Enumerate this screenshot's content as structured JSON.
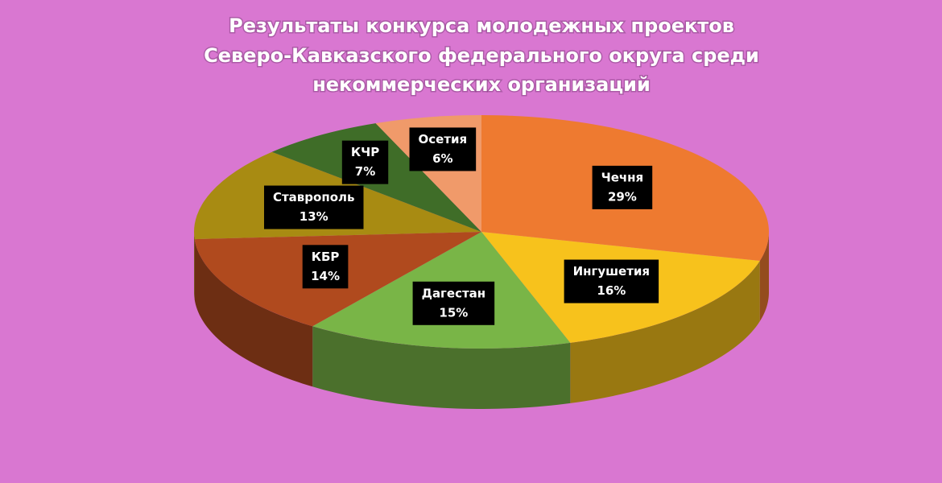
{
  "chart_data": {
    "type": "pie",
    "title": [
      "Результаты конкурса молодежных проектов",
      "Северо-Кавказского федерального округа среди",
      "некоммерческих организаций"
    ],
    "categories": [
      "Чечня",
      "Ингушетия",
      "Дагестан",
      "КБР",
      "Ставрополь",
      "КЧР",
      "Осетия"
    ],
    "values": [
      29,
      16,
      15,
      14,
      13,
      7,
      6
    ],
    "value_labels": [
      "29%",
      "16%",
      "15%",
      "14%",
      "13%",
      "7%",
      "6%"
    ],
    "colors": [
      "#ee7a30",
      "#f7c21c",
      "#79b547",
      "#b04a1e",
      "#a88b12",
      "#3f6d28",
      "#f09a6a"
    ]
  }
}
